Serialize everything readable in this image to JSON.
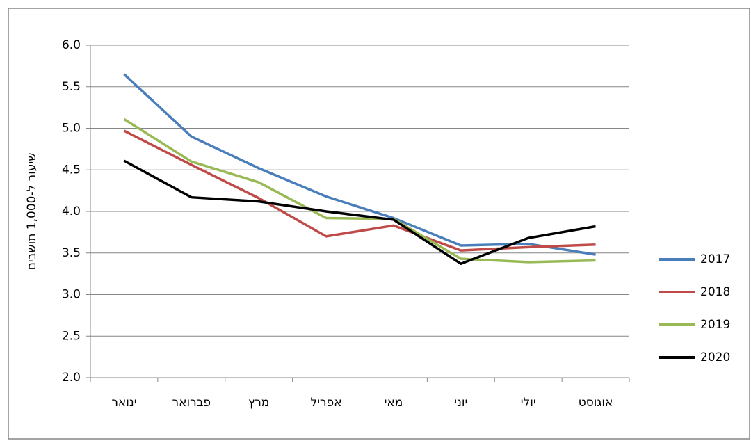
{
  "chart_data": {
    "type": "line",
    "ylabel": "שיעור ל-1,000 תושבים",
    "categories": [
      "ינואר",
      "פברואר",
      "מרץ",
      "אפריל",
      "מאי",
      "יוני",
      "יולי",
      "אוגוסט"
    ],
    "series": [
      {
        "name": "2017",
        "color": "#4a7ebb",
        "values": [
          5.65,
          4.9,
          4.52,
          4.18,
          3.92,
          3.59,
          3.61,
          3.48
        ]
      },
      {
        "name": "2018",
        "color": "#be4b48",
        "values": [
          4.97,
          4.56,
          4.16,
          3.7,
          3.83,
          3.53,
          3.57,
          3.6
        ]
      },
      {
        "name": "2019",
        "color": "#98b954",
        "values": [
          5.11,
          4.6,
          4.35,
          3.92,
          3.91,
          3.43,
          3.39,
          3.41
        ]
      },
      {
        "name": "2020",
        "color": "#000000",
        "values": [
          4.61,
          4.17,
          4.12,
          4.0,
          3.9,
          3.37,
          3.68,
          3.82
        ]
      }
    ],
    "ylim": [
      2,
      6
    ],
    "yticks": [
      {
        "value": 2,
        "label": "2.0"
      },
      {
        "value": 2.5,
        "label": "2.5"
      },
      {
        "value": 3,
        "label": "3.0"
      },
      {
        "value": 3.5,
        "label": "3.5"
      },
      {
        "value": 4,
        "label": "4.0"
      },
      {
        "value": 4.5,
        "label": "4.5"
      },
      {
        "value": 5,
        "label": "5.0"
      },
      {
        "value": 5.5,
        "label": "5.5"
      },
      {
        "value": 6,
        "label": "6.0"
      }
    ],
    "grid": true,
    "legend": "right"
  }
}
